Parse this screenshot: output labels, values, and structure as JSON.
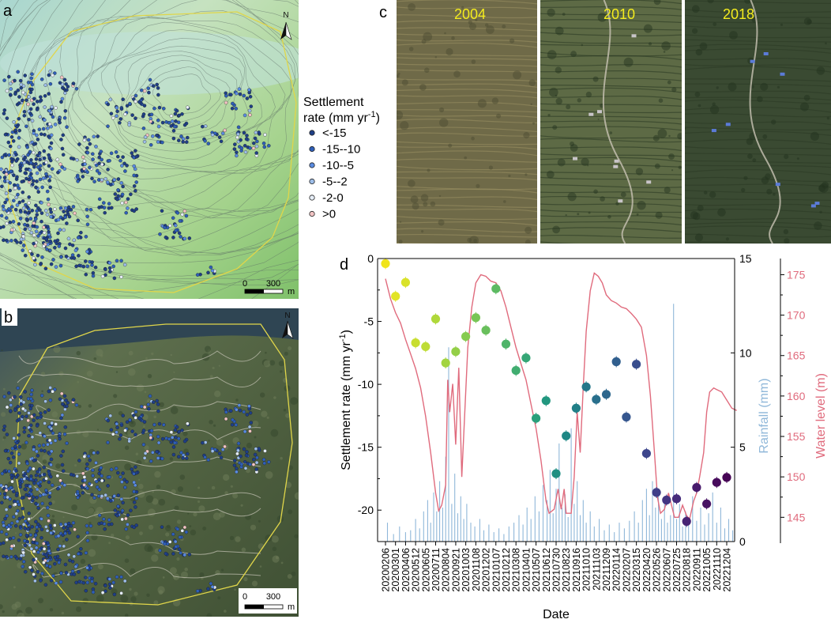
{
  "panels": {
    "a": "a",
    "b": "b",
    "c": "c",
    "d": "d"
  },
  "map_a": {
    "north": "N",
    "scale_zero": "0",
    "scale_value": "300",
    "scale_unit": "m"
  },
  "map_b": {
    "north": "N",
    "scale_zero": "0",
    "scale_value": "300",
    "scale_unit": "m"
  },
  "legend": {
    "title_line1": "Settlement",
    "title_line2": "rate (mm yr",
    "title_sup": "-1",
    "title_close": ")",
    "classes": [
      {
        "label": "<-15",
        "color": "#1f3f86"
      },
      {
        "label": "-15--10",
        "color": "#2f5fb8"
      },
      {
        "label": "-10--5",
        "color": "#5a8be0"
      },
      {
        "label": "-5--2",
        "color": "#9dbde8"
      },
      {
        "label": "-2-0",
        "color": "#e6eef8"
      },
      {
        "label": ">0",
        "color": "#f2c4c4"
      }
    ]
  },
  "photos": [
    {
      "year": "2004",
      "tone": "#6f6a48"
    },
    {
      "year": "2010",
      "tone": "#5d6a45"
    },
    {
      "year": "2018",
      "tone": "#3a4a32"
    }
  ],
  "chart_data": {
    "type": "scatter",
    "x_labels": [
      "20200206",
      "20200301",
      "20200406",
      "20200512",
      "20200605",
      "20200711",
      "20200804",
      "20200921",
      "20201003",
      "20201108",
      "20201202",
      "20210107",
      "20210212",
      "20210308",
      "20210401",
      "20210507",
      "20210612",
      "20210730",
      "20210823",
      "20210916",
      "20211010",
      "20211103",
      "20211209",
      "20220114",
      "20220207",
      "20220315",
      "20220420",
      "20220526",
      "20220607",
      "20220725",
      "20220818",
      "20220911",
      "20221005",
      "20221110",
      "20221204"
    ],
    "xlabel": "Date",
    "y_left": {
      "label": "Settlement rate (mm yr",
      "label_sup": "-1",
      "label_close": ")",
      "lim": [
        -22.5,
        0
      ],
      "ticks": [
        0,
        -5,
        -10,
        -15,
        -20
      ]
    },
    "y_rain": {
      "label": "Rainfall (mm)",
      "lim": [
        0,
        15
      ],
      "ticks": [
        0,
        5,
        10,
        15
      ],
      "color": "#8fb7d9"
    },
    "y_water": {
      "label": "Water level (m)",
      "lim": [
        142,
        177
      ],
      "ticks": [
        145,
        150,
        155,
        160,
        165,
        170,
        175
      ],
      "color": "#e06b7d"
    },
    "settlement_points": [
      {
        "x": 0,
        "y": -0.4,
        "color": "#f0e41a"
      },
      {
        "x": 1,
        "y": -3.0,
        "color": "#e2e426"
      },
      {
        "x": 2,
        "y": -1.9,
        "color": "#d9e22a"
      },
      {
        "x": 3,
        "y": -6.7,
        "color": "#c8de30"
      },
      {
        "x": 4,
        "y": -7.0,
        "color": "#bedc35"
      },
      {
        "x": 5,
        "y": -4.8,
        "color": "#afd83a"
      },
      {
        "x": 6,
        "y": -8.3,
        "color": "#a2d440"
      },
      {
        "x": 7,
        "y": -7.4,
        "color": "#94cf47"
      },
      {
        "x": 8,
        "y": -6.2,
        "color": "#86cb4f"
      },
      {
        "x": 9,
        "y": -4.7,
        "color": "#77c555"
      },
      {
        "x": 10,
        "y": -5.7,
        "color": "#69bf5c"
      },
      {
        "x": 11,
        "y": -2.4,
        "color": "#5cba62"
      },
      {
        "x": 12,
        "y": -6.8,
        "color": "#4eb469"
      },
      {
        "x": 13,
        "y": -8.9,
        "color": "#41ad70"
      },
      {
        "x": 14,
        "y": -7.9,
        "color": "#35a676"
      },
      {
        "x": 15,
        "y": -12.7,
        "color": "#2a9f7b"
      },
      {
        "x": 16,
        "y": -11.3,
        "color": "#22977f"
      },
      {
        "x": 17,
        "y": -17.1,
        "color": "#1e8f82"
      },
      {
        "x": 18,
        "y": -14.1,
        "color": "#1e8785"
      },
      {
        "x": 19,
        "y": -11.9,
        "color": "#217f87"
      },
      {
        "x": 20,
        "y": -10.2,
        "color": "#25778a"
      },
      {
        "x": 21,
        "y": -11.2,
        "color": "#296f8c"
      },
      {
        "x": 22,
        "y": -10.8,
        "color": "#2d678d"
      },
      {
        "x": 23,
        "y": -8.2,
        "color": "#315f8e"
      },
      {
        "x": 24,
        "y": -12.6,
        "color": "#35568e"
      },
      {
        "x": 25,
        "y": -8.4,
        "color": "#394e8e"
      },
      {
        "x": 26,
        "y": -15.5,
        "color": "#3d468c"
      },
      {
        "x": 27,
        "y": -18.6,
        "color": "#403e88"
      },
      {
        "x": 28,
        "y": -19.2,
        "color": "#433582"
      },
      {
        "x": 29,
        "y": -19.1,
        "color": "#452c7b"
      },
      {
        "x": 30,
        "y": -20.9,
        "color": "#472373"
      },
      {
        "x": 31,
        "y": -18.2,
        "color": "#481a6b"
      },
      {
        "x": 32,
        "y": -19.5,
        "color": "#481363"
      },
      {
        "x": 33,
        "y": -17.8,
        "color": "#470b5c"
      },
      {
        "x": 34,
        "y": -17.4,
        "color": "#460555"
      }
    ],
    "water_level_series": [
      {
        "x": 0,
        "y": 174.5
      },
      {
        "x": 0.5,
        "y": 172.0
      },
      {
        "x": 1.0,
        "y": 170.3
      },
      {
        "x": 1.5,
        "y": 169.0
      },
      {
        "x": 2.0,
        "y": 167.0
      },
      {
        "x": 2.5,
        "y": 165.2
      },
      {
        "x": 3.0,
        "y": 163.4
      },
      {
        "x": 3.5,
        "y": 161.0
      },
      {
        "x": 4.0,
        "y": 157.5
      },
      {
        "x": 4.5,
        "y": 153.0
      },
      {
        "x": 5.0,
        "y": 148.0
      },
      {
        "x": 5.3,
        "y": 145.8
      },
      {
        "x": 5.6,
        "y": 146.5
      },
      {
        "x": 6.0,
        "y": 149.0
      },
      {
        "x": 6.2,
        "y": 162.0
      },
      {
        "x": 6.4,
        "y": 158.0
      },
      {
        "x": 6.7,
        "y": 161.5
      },
      {
        "x": 7.0,
        "y": 154.0
      },
      {
        "x": 7.3,
        "y": 163.5
      },
      {
        "x": 7.6,
        "y": 150.0
      },
      {
        "x": 7.9,
        "y": 158.0
      },
      {
        "x": 8.2,
        "y": 166.0
      },
      {
        "x": 8.6,
        "y": 171.0
      },
      {
        "x": 9.0,
        "y": 174.0
      },
      {
        "x": 9.5,
        "y": 175.0
      },
      {
        "x": 10.0,
        "y": 174.8
      },
      {
        "x": 10.5,
        "y": 174.2
      },
      {
        "x": 11.0,
        "y": 174.0
      },
      {
        "x": 11.5,
        "y": 173.0
      },
      {
        "x": 12.0,
        "y": 171.0
      },
      {
        "x": 12.5,
        "y": 168.5
      },
      {
        "x": 13.0,
        "y": 166.0
      },
      {
        "x": 13.5,
        "y": 164.0
      },
      {
        "x": 14.0,
        "y": 162.0
      },
      {
        "x": 14.5,
        "y": 159.0
      },
      {
        "x": 15.0,
        "y": 156.0
      },
      {
        "x": 15.5,
        "y": 152.0
      },
      {
        "x": 16.0,
        "y": 147.0
      },
      {
        "x": 16.3,
        "y": 145.5
      },
      {
        "x": 16.8,
        "y": 146.0
      },
      {
        "x": 17.2,
        "y": 148.5
      },
      {
        "x": 17.5,
        "y": 146.0
      },
      {
        "x": 17.8,
        "y": 148.5
      },
      {
        "x": 18.0,
        "y": 145.5
      },
      {
        "x": 18.5,
        "y": 145.5
      },
      {
        "x": 18.8,
        "y": 150.0
      },
      {
        "x": 19.1,
        "y": 158.0
      },
      {
        "x": 19.4,
        "y": 153.0
      },
      {
        "x": 19.7,
        "y": 161.0
      },
      {
        "x": 20.0,
        "y": 168.0
      },
      {
        "x": 20.4,
        "y": 173.0
      },
      {
        "x": 20.8,
        "y": 175.2
      },
      {
        "x": 21.2,
        "y": 174.8
      },
      {
        "x": 21.6,
        "y": 174.0
      },
      {
        "x": 22.0,
        "y": 172.5
      },
      {
        "x": 22.5,
        "y": 171.8
      },
      {
        "x": 23.0,
        "y": 171.5
      },
      {
        "x": 23.5,
        "y": 171.0
      },
      {
        "x": 24.0,
        "y": 170.8
      },
      {
        "x": 24.5,
        "y": 170.2
      },
      {
        "x": 25.0,
        "y": 169.5
      },
      {
        "x": 25.5,
        "y": 168.5
      },
      {
        "x": 26.0,
        "y": 165.0
      },
      {
        "x": 26.4,
        "y": 160.0
      },
      {
        "x": 26.8,
        "y": 153.0
      },
      {
        "x": 27.1,
        "y": 147.5
      },
      {
        "x": 27.4,
        "y": 145.5
      },
      {
        "x": 27.8,
        "y": 146.0
      },
      {
        "x": 28.2,
        "y": 148.0
      },
      {
        "x": 28.5,
        "y": 146.5
      },
      {
        "x": 28.8,
        "y": 145.0
      },
      {
        "x": 29.2,
        "y": 145.0
      },
      {
        "x": 29.6,
        "y": 146.5
      },
      {
        "x": 30.0,
        "y": 145.2
      },
      {
        "x": 30.3,
        "y": 144.8
      },
      {
        "x": 30.7,
        "y": 147.0
      },
      {
        "x": 31.0,
        "y": 148.0
      },
      {
        "x": 31.3,
        "y": 150.0
      },
      {
        "x": 31.7,
        "y": 153.0
      },
      {
        "x": 32.0,
        "y": 158.0
      },
      {
        "x": 32.3,
        "y": 160.5
      },
      {
        "x": 32.7,
        "y": 161.0
      },
      {
        "x": 33.0,
        "y": 160.8
      },
      {
        "x": 33.5,
        "y": 160.5
      },
      {
        "x": 34.0,
        "y": 159.5
      },
      {
        "x": 34.5,
        "y": 158.5
      },
      {
        "x": 35.0,
        "y": 158.2
      }
    ],
    "rainfall_bars": [
      {
        "x": 0.2,
        "y": 1.0
      },
      {
        "x": 0.8,
        "y": 0.4
      },
      {
        "x": 1.4,
        "y": 0.8
      },
      {
        "x": 2.0,
        "y": 0.5
      },
      {
        "x": 2.5,
        "y": 0.6
      },
      {
        "x": 3.0,
        "y": 1.2
      },
      {
        "x": 3.4,
        "y": 0.7
      },
      {
        "x": 3.8,
        "y": 1.6
      },
      {
        "x": 4.2,
        "y": 2.2
      },
      {
        "x": 4.5,
        "y": 1.0
      },
      {
        "x": 4.8,
        "y": 2.6
      },
      {
        "x": 5.1,
        "y": 1.6
      },
      {
        "x": 5.4,
        "y": 3.2
      },
      {
        "x": 5.7,
        "y": 1.8
      },
      {
        "x": 6.0,
        "y": 4.5
      },
      {
        "x": 6.3,
        "y": 10.3
      },
      {
        "x": 6.6,
        "y": 2.0
      },
      {
        "x": 6.9,
        "y": 3.6
      },
      {
        "x": 7.2,
        "y": 1.5
      },
      {
        "x": 7.5,
        "y": 2.4
      },
      {
        "x": 7.8,
        "y": 1.2
      },
      {
        "x": 8.1,
        "y": 2.0
      },
      {
        "x": 8.5,
        "y": 1.0
      },
      {
        "x": 8.9,
        "y": 0.8
      },
      {
        "x": 9.4,
        "y": 1.2
      },
      {
        "x": 9.8,
        "y": 0.6
      },
      {
        "x": 10.3,
        "y": 0.9
      },
      {
        "x": 10.8,
        "y": 0.5
      },
      {
        "x": 11.3,
        "y": 0.7
      },
      {
        "x": 11.8,
        "y": 0.4
      },
      {
        "x": 12.3,
        "y": 0.8
      },
      {
        "x": 12.8,
        "y": 1.0
      },
      {
        "x": 13.3,
        "y": 1.4
      },
      {
        "x": 13.7,
        "y": 0.9
      },
      {
        "x": 14.1,
        "y": 1.8
      },
      {
        "x": 14.5,
        "y": 1.2
      },
      {
        "x": 14.9,
        "y": 2.4
      },
      {
        "x": 15.3,
        "y": 1.6
      },
      {
        "x": 15.7,
        "y": 3.0
      },
      {
        "x": 16.1,
        "y": 2.2
      },
      {
        "x": 16.4,
        "y": 3.8
      },
      {
        "x": 16.7,
        "y": 1.5
      },
      {
        "x": 17.0,
        "y": 2.8
      },
      {
        "x": 17.3,
        "y": 5.2
      },
      {
        "x": 17.6,
        "y": 1.8
      },
      {
        "x": 17.9,
        "y": 2.5
      },
      {
        "x": 18.2,
        "y": 1.3
      },
      {
        "x": 18.5,
        "y": 6.0
      },
      {
        "x": 18.8,
        "y": 2.0
      },
      {
        "x": 19.1,
        "y": 3.2
      },
      {
        "x": 19.4,
        "y": 1.4
      },
      {
        "x": 19.7,
        "y": 2.2
      },
      {
        "x": 20.0,
        "y": 1.0
      },
      {
        "x": 20.4,
        "y": 1.6
      },
      {
        "x": 20.8,
        "y": 0.8
      },
      {
        "x": 21.3,
        "y": 1.2
      },
      {
        "x": 21.8,
        "y": 0.6
      },
      {
        "x": 22.3,
        "y": 0.9
      },
      {
        "x": 22.8,
        "y": 0.5
      },
      {
        "x": 23.3,
        "y": 1.0
      },
      {
        "x": 23.8,
        "y": 0.7
      },
      {
        "x": 24.3,
        "y": 1.1
      },
      {
        "x": 24.8,
        "y": 1.6
      },
      {
        "x": 25.2,
        "y": 1.0
      },
      {
        "x": 25.6,
        "y": 2.2
      },
      {
        "x": 26.0,
        "y": 2.8
      },
      {
        "x": 26.3,
        "y": 1.4
      },
      {
        "x": 26.6,
        "y": 3.2
      },
      {
        "x": 26.9,
        "y": 1.8
      },
      {
        "x": 27.2,
        "y": 2.6
      },
      {
        "x": 27.5,
        "y": 1.2
      },
      {
        "x": 27.8,
        "y": 2.0
      },
      {
        "x": 28.1,
        "y": 1.0
      },
      {
        "x": 28.4,
        "y": 1.4
      },
      {
        "x": 28.7,
        "y": 12.6
      },
      {
        "x": 29.0,
        "y": 1.2
      },
      {
        "x": 29.3,
        "y": 2.0
      },
      {
        "x": 29.6,
        "y": 0.8
      },
      {
        "x": 29.9,
        "y": 1.6
      },
      {
        "x": 30.2,
        "y": 0.9
      },
      {
        "x": 30.6,
        "y": 2.4
      },
      {
        "x": 31.0,
        "y": 1.1
      },
      {
        "x": 31.4,
        "y": 1.8
      },
      {
        "x": 31.8,
        "y": 0.9
      },
      {
        "x": 32.2,
        "y": 1.5
      },
      {
        "x": 32.6,
        "y": 2.6
      },
      {
        "x": 33.0,
        "y": 1.0
      },
      {
        "x": 33.4,
        "y": 1.8
      },
      {
        "x": 33.8,
        "y": 0.7
      },
      {
        "x": 34.2,
        "y": 1.2
      },
      {
        "x": 34.6,
        "y": 0.6
      }
    ]
  }
}
